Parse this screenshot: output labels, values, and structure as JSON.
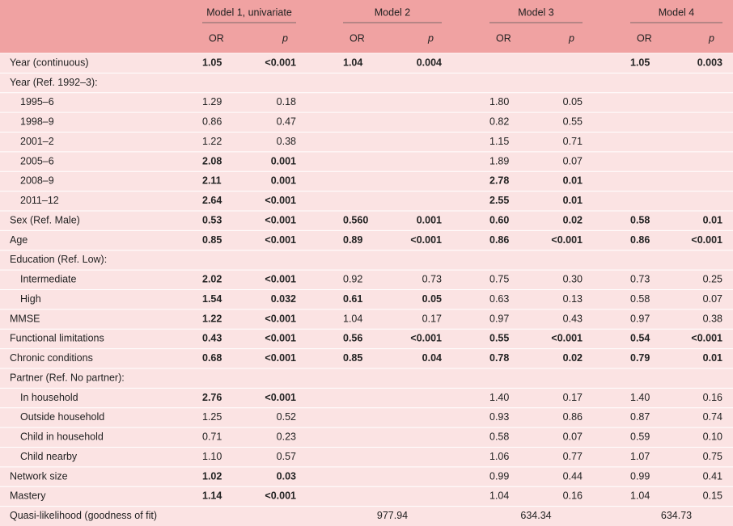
{
  "table": {
    "models": [
      "Model 1, univariate",
      "Model 2",
      "Model 3",
      "Model 4"
    ],
    "subheader": [
      "OR",
      "p",
      "OR",
      "p",
      "OR",
      "p",
      "OR",
      "p"
    ],
    "rows": [
      {
        "label": "Year (continuous)",
        "indent": false,
        "cells": [
          "1.05",
          "<0.001",
          "1.04",
          "0.004",
          null,
          null,
          "1.05",
          "0.003"
        ],
        "bold": [
          true,
          true,
          true,
          true,
          false,
          false,
          true,
          true
        ]
      },
      {
        "label": "Year (Ref. 1992–3):",
        "indent": false,
        "cells": [
          null,
          null,
          null,
          null,
          null,
          null,
          null,
          null
        ],
        "bold": [
          false,
          false,
          false,
          false,
          false,
          false,
          false,
          false
        ]
      },
      {
        "label": "1995–6",
        "indent": true,
        "cells": [
          "1.29",
          "0.18",
          null,
          null,
          "1.80",
          "0.05",
          null,
          null
        ],
        "bold": [
          false,
          false,
          false,
          false,
          false,
          false,
          false,
          false
        ]
      },
      {
        "label": "1998–9",
        "indent": true,
        "cells": [
          "0.86",
          "0.47",
          null,
          null,
          "0.82",
          "0.55",
          null,
          null
        ],
        "bold": [
          false,
          false,
          false,
          false,
          false,
          false,
          false,
          false
        ]
      },
      {
        "label": "2001–2",
        "indent": true,
        "cells": [
          "1.22",
          "0.38",
          null,
          null,
          "1.15",
          "0.71",
          null,
          null
        ],
        "bold": [
          false,
          false,
          false,
          false,
          false,
          false,
          false,
          false
        ]
      },
      {
        "label": "2005–6",
        "indent": true,
        "cells": [
          "2.08",
          "0.001",
          null,
          null,
          "1.89",
          "0.07",
          null,
          null
        ],
        "bold": [
          true,
          true,
          false,
          false,
          false,
          false,
          false,
          false
        ]
      },
      {
        "label": "2008–9",
        "indent": true,
        "cells": [
          "2.11",
          "0.001",
          null,
          null,
          "2.78",
          "0.01",
          null,
          null
        ],
        "bold": [
          true,
          true,
          false,
          false,
          true,
          true,
          false,
          false
        ]
      },
      {
        "label": "2011–12",
        "indent": true,
        "cells": [
          "2.64",
          "<0.001",
          null,
          null,
          "2.55",
          "0.01",
          null,
          null
        ],
        "bold": [
          true,
          true,
          false,
          false,
          true,
          true,
          false,
          false
        ]
      },
      {
        "label": "Sex (Ref. Male)",
        "indent": false,
        "cells": [
          "0.53",
          "<0.001",
          "0.560",
          "0.001",
          "0.60",
          "0.02",
          "0.58",
          "0.01"
        ],
        "bold": [
          true,
          true,
          true,
          true,
          true,
          true,
          true,
          true
        ]
      },
      {
        "label": "Age",
        "indent": false,
        "cells": [
          "0.85",
          "<0.001",
          "0.89",
          "<0.001",
          "0.86",
          "<0.001",
          "0.86",
          "<0.001"
        ],
        "bold": [
          true,
          true,
          true,
          true,
          true,
          true,
          true,
          true
        ]
      },
      {
        "label": "Education (Ref. Low):",
        "indent": false,
        "cells": [
          null,
          null,
          null,
          null,
          null,
          null,
          null,
          null
        ],
        "bold": [
          false,
          false,
          false,
          false,
          false,
          false,
          false,
          false
        ]
      },
      {
        "label": "Intermediate",
        "indent": true,
        "cells": [
          "2.02",
          "<0.001",
          "0.92",
          "0.73",
          "0.75",
          "0.30",
          "0.73",
          "0.25"
        ],
        "bold": [
          true,
          true,
          false,
          false,
          false,
          false,
          false,
          false
        ]
      },
      {
        "label": "High",
        "indent": true,
        "cells": [
          "1.54",
          "0.032",
          "0.61",
          "0.05",
          "0.63",
          "0.13",
          "0.58",
          "0.07"
        ],
        "bold": [
          true,
          true,
          true,
          true,
          false,
          false,
          false,
          false
        ]
      },
      {
        "label": "MMSE",
        "indent": false,
        "cells": [
          "1.22",
          "<0.001",
          "1.04",
          "0.17",
          "0.97",
          "0.43",
          "0.97",
          "0.38"
        ],
        "bold": [
          true,
          true,
          false,
          false,
          false,
          false,
          false,
          false
        ]
      },
      {
        "label": "Functional limitations",
        "indent": false,
        "cells": [
          "0.43",
          "<0.001",
          "0.56",
          "<0.001",
          "0.55",
          "<0.001",
          "0.54",
          "<0.001"
        ],
        "bold": [
          true,
          true,
          true,
          true,
          true,
          true,
          true,
          true
        ]
      },
      {
        "label": "Chronic conditions",
        "indent": false,
        "cells": [
          "0.68",
          "<0.001",
          "0.85",
          "0.04",
          "0.78",
          "0.02",
          "0.79",
          "0.01"
        ],
        "bold": [
          true,
          true,
          true,
          true,
          true,
          true,
          true,
          true
        ]
      },
      {
        "label": "Partner (Ref. No partner):",
        "indent": false,
        "cells": [
          null,
          null,
          null,
          null,
          null,
          null,
          null,
          null
        ],
        "bold": [
          false,
          false,
          false,
          false,
          false,
          false,
          false,
          false
        ]
      },
      {
        "label": "In household",
        "indent": true,
        "cells": [
          "2.76",
          "<0.001",
          null,
          null,
          "1.40",
          "0.17",
          "1.40",
          "0.16"
        ],
        "bold": [
          true,
          true,
          false,
          false,
          false,
          false,
          false,
          false
        ]
      },
      {
        "label": "Outside household",
        "indent": true,
        "cells": [
          "1.25",
          "0.52",
          null,
          null,
          "0.93",
          "0.86",
          "0.87",
          "0.74"
        ],
        "bold": [
          false,
          false,
          false,
          false,
          false,
          false,
          false,
          false
        ]
      },
      {
        "label": "Child in household",
        "indent": true,
        "cells": [
          "0.71",
          "0.23",
          null,
          null,
          "0.58",
          "0.07",
          "0.59",
          "0.10"
        ],
        "bold": [
          false,
          false,
          false,
          false,
          false,
          false,
          false,
          false
        ]
      },
      {
        "label": "Child nearby",
        "indent": true,
        "cells": [
          "1.10",
          "0.57",
          null,
          null,
          "1.06",
          "0.77",
          "1.07",
          "0.75"
        ],
        "bold": [
          false,
          false,
          false,
          false,
          false,
          false,
          false,
          false
        ]
      },
      {
        "label": "Network size",
        "indent": false,
        "cells": [
          "1.02",
          "0.03",
          null,
          null,
          "0.99",
          "0.44",
          "0.99",
          "0.41"
        ],
        "bold": [
          true,
          true,
          false,
          false,
          false,
          false,
          false,
          false
        ]
      },
      {
        "label": "Mastery",
        "indent": false,
        "cells": [
          "1.14",
          "<0.001",
          null,
          null,
          "1.04",
          "0.16",
          "1.04",
          "0.15"
        ],
        "bold": [
          true,
          true,
          false,
          false,
          false,
          false,
          false,
          false
        ]
      }
    ],
    "fit": {
      "label": "Quasi-likelihood (goodness of fit)",
      "values": [
        null,
        "977.94",
        "634.34",
        "634.73"
      ]
    }
  }
}
